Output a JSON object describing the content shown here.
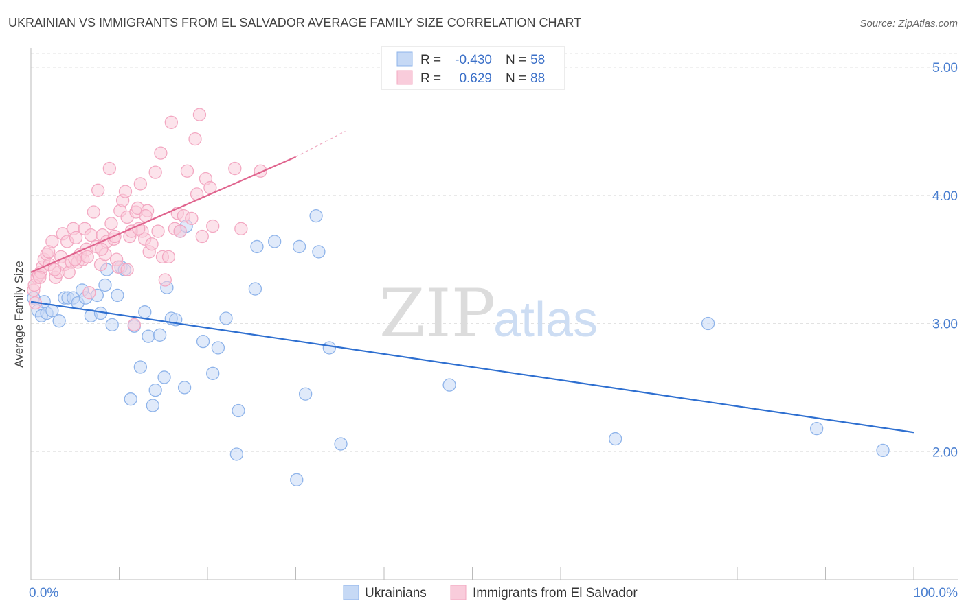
{
  "chart_data": {
    "type": "scatter",
    "title": "UKRAINIAN VS IMMIGRANTS FROM EL SALVADOR AVERAGE FAMILY SIZE CORRELATION CHART",
    "source": "Source: ZipAtlas.com",
    "ylabel": "Average Family Size",
    "xlim": [
      0,
      100
    ],
    "ylim": [
      1.0,
      5.15
    ],
    "x_tick_labels": [
      "0.0%",
      "100.0%"
    ],
    "y_ticks": [
      {
        "value": 2,
        "label": "2.00"
      },
      {
        "value": 3,
        "label": "3.00"
      },
      {
        "value": 4,
        "label": "4.00"
      },
      {
        "value": 5,
        "label": "5.00"
      }
    ],
    "grid": true,
    "watermark": {
      "zip": "ZIP",
      "atlas": "atlas"
    },
    "legend_top": {
      "rows": [
        {
          "r_label": "R =",
          "r_value": "-0.430",
          "n_label": "N =",
          "n_value": "58"
        },
        {
          "r_label": "R =",
          "r_value": "0.629",
          "n_label": "N =",
          "n_value": "88"
        }
      ]
    },
    "series": [
      {
        "name": "Ukrainians",
        "color": "#8fb4ea",
        "fill": "#c6d9f5",
        "line_color": "#2e6fd0",
        "trend": {
          "x0": 0,
          "y0": 3.17,
          "x1": 100,
          "y1": 2.15,
          "dashed_to": null
        },
        "points": [
          [
            0.3,
            3.2
          ],
          [
            0.8,
            3.1
          ],
          [
            1.2,
            3.06
          ],
          [
            1.8,
            3.08
          ],
          [
            2.4,
            3.1
          ],
          [
            3.2,
            3.02
          ],
          [
            3.8,
            3.2
          ],
          [
            4.2,
            3.2
          ],
          [
            4.8,
            3.2
          ],
          [
            5.3,
            3.16
          ],
          [
            5.8,
            3.26
          ],
          [
            6.2,
            3.2
          ],
          [
            6.8,
            3.06
          ],
          [
            7.5,
            3.22
          ],
          [
            7.9,
            3.08
          ],
          [
            8.4,
            3.3
          ],
          [
            8.6,
            3.42
          ],
          [
            9.2,
            2.99
          ],
          [
            9.8,
            3.22
          ],
          [
            10.2,
            3.44
          ],
          [
            10.6,
            3.42
          ],
          [
            11.3,
            2.41
          ],
          [
            11.7,
            2.98
          ],
          [
            12.4,
            2.66
          ],
          [
            12.9,
            3.09
          ],
          [
            13.3,
            2.9
          ],
          [
            13.8,
            2.36
          ],
          [
            14.1,
            2.48
          ],
          [
            14.6,
            2.91
          ],
          [
            15.1,
            2.58
          ],
          [
            15.4,
            3.28
          ],
          [
            15.9,
            3.04
          ],
          [
            16.4,
            3.03
          ],
          [
            16.9,
            3.72
          ],
          [
            17.4,
            2.5
          ],
          [
            17.6,
            3.76
          ],
          [
            19.5,
            2.86
          ],
          [
            20.6,
            2.61
          ],
          [
            21.2,
            2.81
          ],
          [
            22.1,
            3.04
          ],
          [
            23.3,
            1.98
          ],
          [
            23.5,
            2.32
          ],
          [
            25.6,
            3.6
          ],
          [
            25.4,
            3.27
          ],
          [
            27.6,
            3.64
          ],
          [
            30.1,
            1.78
          ],
          [
            30.4,
            3.6
          ],
          [
            31.1,
            2.45
          ],
          [
            32.3,
            3.84
          ],
          [
            32.6,
            3.56
          ],
          [
            33.8,
            2.81
          ],
          [
            35.1,
            2.06
          ],
          [
            47.4,
            2.52
          ],
          [
            66.2,
            2.1
          ],
          [
            76.7,
            3.0
          ],
          [
            89.0,
            2.18
          ],
          [
            96.5,
            2.01
          ],
          [
            1.5,
            3.17
          ]
        ]
      },
      {
        "name": "Immigrants from El Salvador",
        "color": "#f3a8c2",
        "fill": "#f9ccdb",
        "line_color": "#e0648e",
        "trend": {
          "x0": 0,
          "y0": 3.4,
          "x1": 30,
          "y1": 4.3,
          "dashed_to": [
            35.6,
            4.5
          ]
        },
        "points": [
          [
            0.3,
            3.26
          ],
          [
            0.5,
            3.16
          ],
          [
            0.7,
            3.36
          ],
          [
            0.9,
            3.38
          ],
          [
            1.1,
            3.4
          ],
          [
            1.3,
            3.44
          ],
          [
            1.5,
            3.5
          ],
          [
            1.8,
            3.54
          ],
          [
            2.1,
            3.46
          ],
          [
            2.4,
            3.64
          ],
          [
            2.8,
            3.36
          ],
          [
            3.1,
            3.4
          ],
          [
            3.4,
            3.52
          ],
          [
            3.6,
            3.7
          ],
          [
            3.8,
            3.46
          ],
          [
            4.1,
            3.64
          ],
          [
            4.3,
            3.4
          ],
          [
            4.6,
            3.48
          ],
          [
            4.8,
            3.74
          ],
          [
            5.1,
            3.67
          ],
          [
            5.3,
            3.48
          ],
          [
            5.6,
            3.54
          ],
          [
            5.9,
            3.5
          ],
          [
            6.1,
            3.74
          ],
          [
            6.3,
            3.58
          ],
          [
            6.6,
            3.24
          ],
          [
            6.8,
            3.69
          ],
          [
            7.1,
            3.87
          ],
          [
            7.4,
            3.6
          ],
          [
            7.6,
            4.04
          ],
          [
            7.9,
            3.46
          ],
          [
            8.1,
            3.69
          ],
          [
            8.4,
            3.54
          ],
          [
            8.6,
            3.64
          ],
          [
            8.9,
            4.21
          ],
          [
            9.1,
            3.78
          ],
          [
            9.4,
            3.66
          ],
          [
            9.7,
            3.5
          ],
          [
            9.9,
            3.44
          ],
          [
            10.1,
            3.88
          ],
          [
            10.4,
            3.96
          ],
          [
            10.7,
            4.03
          ],
          [
            10.9,
            3.83
          ],
          [
            11.2,
            3.68
          ],
          [
            11.4,
            3.72
          ],
          [
            11.7,
            2.99
          ],
          [
            11.9,
            3.87
          ],
          [
            12.1,
            3.9
          ],
          [
            12.4,
            4.09
          ],
          [
            12.6,
            3.72
          ],
          [
            12.9,
            3.66
          ],
          [
            13.2,
            3.88
          ],
          [
            13.4,
            3.56
          ],
          [
            13.7,
            3.62
          ],
          [
            14.1,
            4.18
          ],
          [
            14.4,
            3.72
          ],
          [
            14.7,
            4.33
          ],
          [
            14.9,
            3.52
          ],
          [
            15.2,
            3.34
          ],
          [
            15.6,
            3.52
          ],
          [
            15.9,
            4.57
          ],
          [
            16.3,
            3.74
          ],
          [
            16.6,
            3.86
          ],
          [
            16.9,
            3.72
          ],
          [
            17.3,
            3.84
          ],
          [
            17.7,
            4.19
          ],
          [
            18.2,
            3.82
          ],
          [
            18.6,
            4.44
          ],
          [
            18.8,
            4.01
          ],
          [
            19.1,
            4.63
          ],
          [
            19.4,
            3.68
          ],
          [
            19.8,
            4.13
          ],
          [
            20.3,
            4.06
          ],
          [
            20.6,
            3.76
          ],
          [
            23.1,
            4.21
          ],
          [
            23.8,
            3.74
          ],
          [
            26.0,
            4.19
          ],
          [
            0.4,
            3.3
          ],
          [
            1.0,
            3.36
          ],
          [
            2.0,
            3.56
          ],
          [
            2.7,
            3.42
          ],
          [
            5.0,
            3.5
          ],
          [
            6.4,
            3.52
          ],
          [
            8.0,
            3.58
          ],
          [
            9.5,
            3.68
          ],
          [
            10.9,
            3.42
          ],
          [
            12.2,
            3.74
          ],
          [
            13.0,
            3.84
          ]
        ]
      }
    ]
  }
}
